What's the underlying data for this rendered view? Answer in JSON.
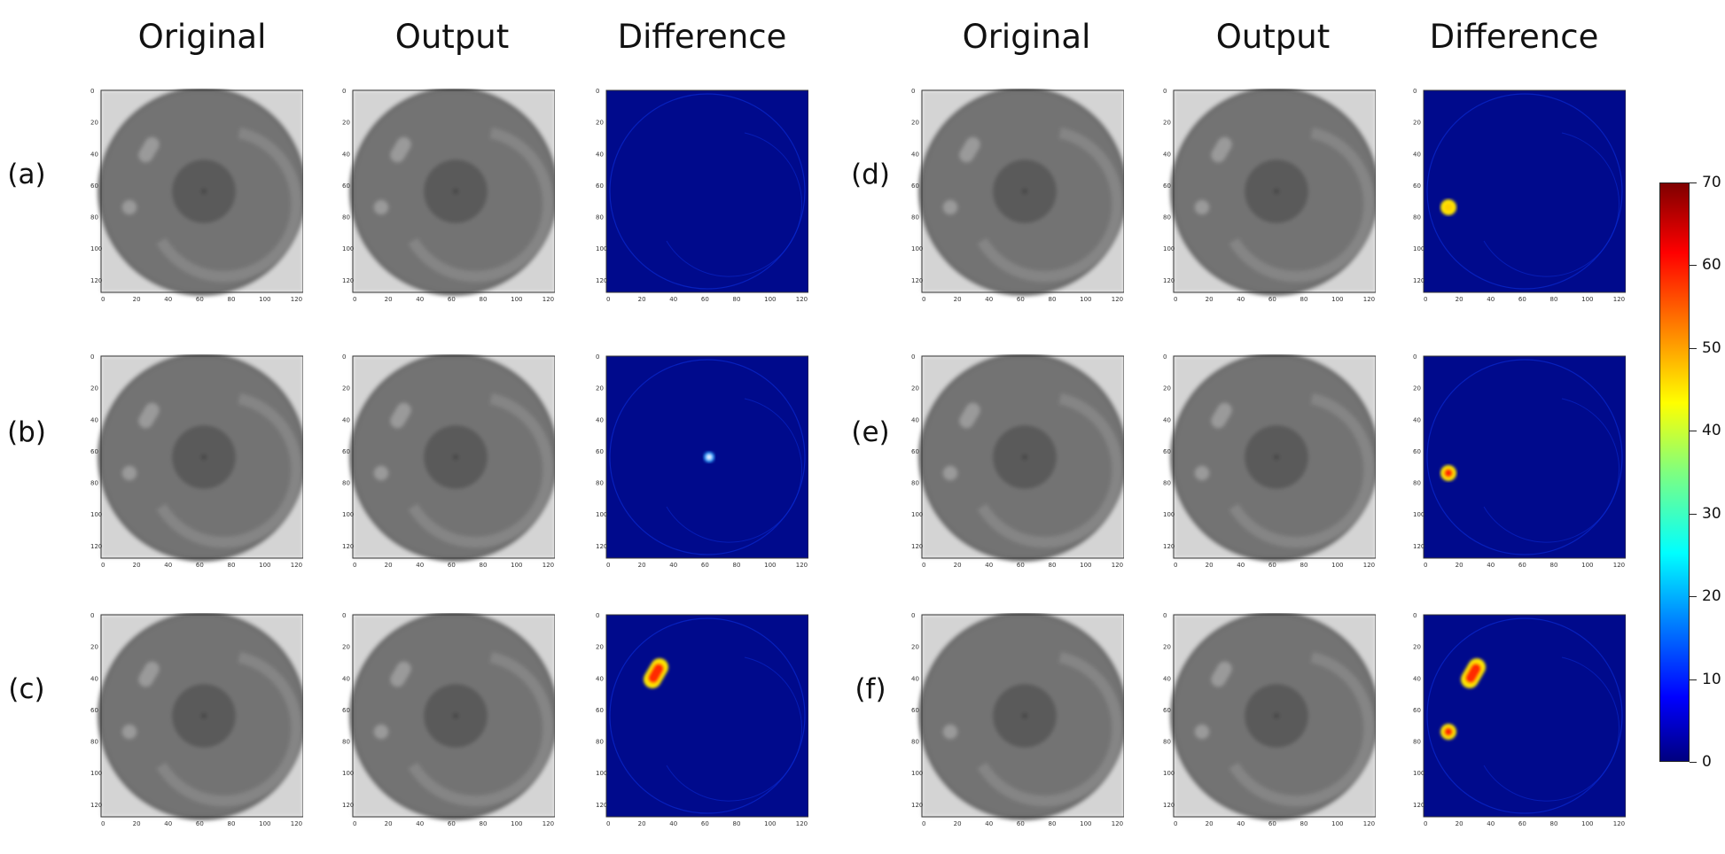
{
  "column_headers": [
    "Original",
    "Output",
    "Difference",
    "Original",
    "Output",
    "Difference"
  ],
  "row_labels": [
    "(a)",
    "(b)",
    "(c)",
    "(d)",
    "(e)",
    "(f)"
  ],
  "colorbar": {
    "ticks": [
      "70",
      "60",
      "50",
      "40",
      "30",
      "20",
      "10",
      "0"
    ],
    "min": 0,
    "max": 70,
    "colormap": "jet"
  },
  "axis_ticks": [
    "0",
    "20",
    "40",
    "60",
    "80",
    "100",
    "120"
  ],
  "samples": [
    {
      "label": "(a)",
      "diff_hotspots": []
    },
    {
      "label": "(b)",
      "diff_hotspots": [
        {
          "name": "center-spot",
          "peak": 30
        }
      ]
    },
    {
      "label": "(c)",
      "diff_hotspots": [
        {
          "name": "pill-spot",
          "peak": 55
        }
      ]
    },
    {
      "label": "(d)",
      "diff_hotspots": [
        {
          "name": "small-dot-spot",
          "peak": 45
        }
      ]
    },
    {
      "label": "(e)",
      "diff_hotspots": [
        {
          "name": "small-dot-spot",
          "peak": 62
        }
      ]
    },
    {
      "label": "(f)",
      "diff_hotspots": [
        {
          "name": "pill-spot",
          "peak": 60
        },
        {
          "name": "small-dot-spot",
          "peak": 55
        }
      ]
    }
  ]
}
